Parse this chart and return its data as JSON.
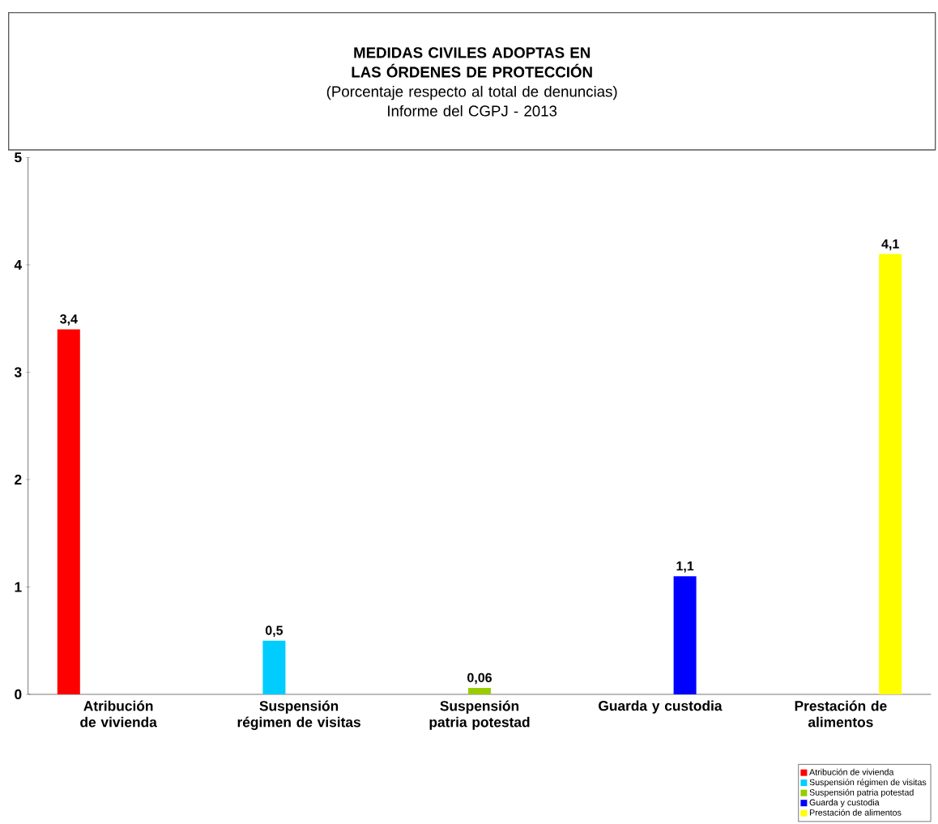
{
  "chart_data": {
    "type": "bar",
    "title": "MEDIDAS CIVILES ADOPTAS EN LAS ÓRDENES DE PROTECCIÓN",
    "subtitle": "(Porcentaje respecto al total de denuncias)",
    "annotations": [
      "Informe del CGPJ -  2013"
    ],
    "categories": [
      "Atribución de vivienda",
      "Suspensión régimen de visitas",
      "Suspensión patria potestad",
      "Guarda y custodia",
      "Prestación de alimentos"
    ],
    "series": [
      {
        "name": "Atribución de vivienda",
        "color": "#ff0000",
        "values": [
          3.4,
          null,
          null,
          null,
          null
        ],
        "value_labels": [
          "3,4",
          null,
          null,
          null,
          null
        ]
      },
      {
        "name": "Suspensión régimen de visitas",
        "color": "#00ccff",
        "values": [
          null,
          0.5,
          null,
          null,
          null
        ],
        "value_labels": [
          null,
          "0,5",
          null,
          null,
          null
        ]
      },
      {
        "name": "Suspensión patria potestad",
        "color": "#99cc00",
        "values": [
          null,
          null,
          0.06,
          null,
          null
        ],
        "value_labels": [
          null,
          null,
          "0,06",
          null,
          null
        ]
      },
      {
        "name": "Guarda y custodia",
        "color": "#0000ff",
        "values": [
          null,
          null,
          null,
          1.1,
          null
        ],
        "value_labels": [
          null,
          null,
          null,
          "1,1",
          null
        ]
      },
      {
        "name": "Prestación de alimentos",
        "color": "#ffff00",
        "values": [
          null,
          null,
          null,
          null,
          4.1
        ],
        "value_labels": [
          null,
          null,
          null,
          null,
          "4,1"
        ]
      }
    ],
    "ylim": [
      0,
      5
    ],
    "yticks": [
      0,
      1,
      2,
      3,
      4,
      5
    ],
    "legend": "bottom right"
  }
}
